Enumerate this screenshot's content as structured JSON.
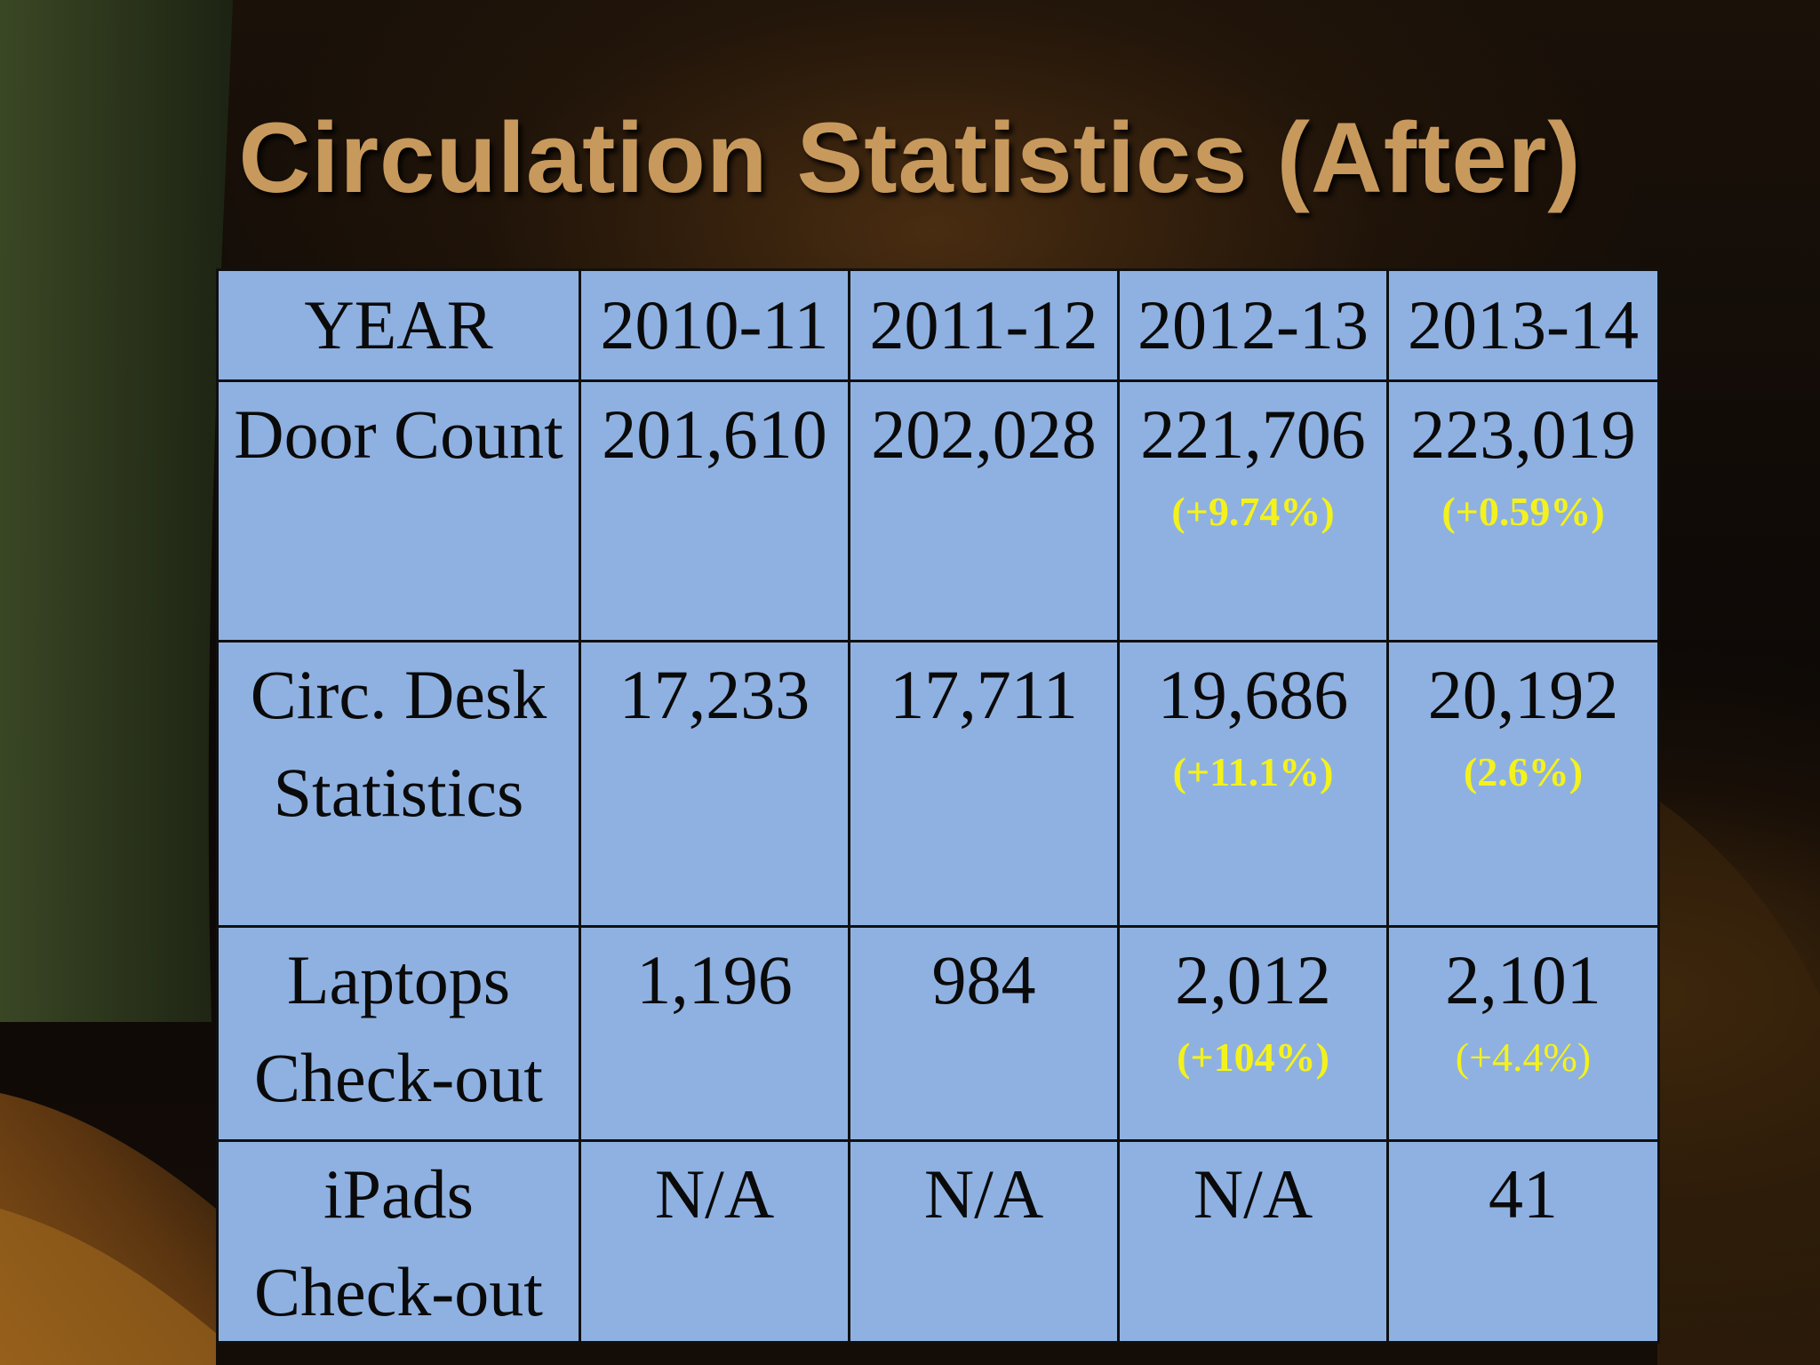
{
  "slide": {
    "title": "Circulation Statistics (After)"
  },
  "colors": {
    "title": "#c8995c",
    "table_fill": "#8fb1e1",
    "change_text": "#f4f21c"
  },
  "table": {
    "headers": [
      "YEAR",
      "2010-11",
      "2011-12",
      "2012-13",
      "2013-14"
    ],
    "rows": [
      {
        "label": "Door Count",
        "cells": [
          {
            "value": "201,610",
            "change": ""
          },
          {
            "value": "202,028",
            "change": ""
          },
          {
            "value": "221,706",
            "change": "(+9.74%)"
          },
          {
            "value": "223,019",
            "change": "(+0.59%)"
          }
        ]
      },
      {
        "label": "Circ. Desk Statistics",
        "cells": [
          {
            "value": "17,233",
            "change": ""
          },
          {
            "value": "17,711",
            "change": ""
          },
          {
            "value": "19,686",
            "change": "(+11.1%)"
          },
          {
            "value": "20,192",
            "change": "(2.6%)"
          }
        ]
      },
      {
        "label": "Laptops Check-out",
        "cells": [
          {
            "value": "1,196",
            "change": ""
          },
          {
            "value": "984",
            "change": ""
          },
          {
            "value": "2,012",
            "change": "(+104%)"
          },
          {
            "value": "2,101",
            "change": "(+4.4%)"
          }
        ]
      },
      {
        "label": "iPads Check-out",
        "cells": [
          {
            "value": "N/A",
            "change": ""
          },
          {
            "value": "N/A",
            "change": ""
          },
          {
            "value": "N/A",
            "change": ""
          },
          {
            "value": "41",
            "change": ""
          }
        ]
      }
    ]
  }
}
